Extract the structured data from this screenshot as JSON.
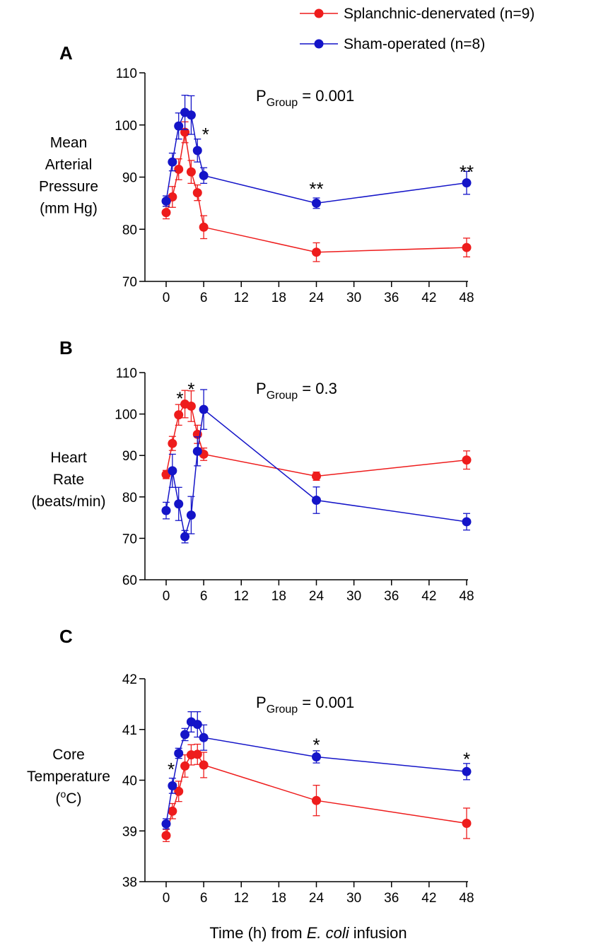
{
  "colors": {
    "splanchnic": "#ee1c1c",
    "sham": "#1414c8",
    "axis": "#000000"
  },
  "legend": [
    {
      "label": "Splanchnic-denervated (n=9)",
      "color": "#ee1c1c"
    },
    {
      "label": "Sham-operated (n=8)",
      "color": "#1414c8"
    }
  ],
  "x_axis": {
    "label_prefix": "Time (h) from ",
    "label_italic": "E. coli",
    "label_suffix": " infusion",
    "ticks": [
      0,
      6,
      12,
      18,
      24,
      30,
      36,
      42,
      48
    ],
    "range": [
      -1,
      48.5
    ]
  },
  "chart_data": [
    {
      "type": "line",
      "panel": "A",
      "ylabel_lines": [
        "Mean",
        "Arterial",
        "Pressure",
        "(mm Hg)"
      ],
      "ylim": [
        70,
        110
      ],
      "yticks": [
        70,
        80,
        90,
        100,
        110
      ],
      "p_group": {
        "P": "P",
        "sub": "Group",
        "rest": " = 0.001"
      },
      "series": [
        {
          "name": "Splanchnic-denervated (n=9)",
          "color": "#ee1c1c",
          "x": [
            0,
            1,
            2,
            3,
            4,
            5,
            6,
            24,
            48
          ],
          "y": [
            83.2,
            86.2,
            91.5,
            98.6,
            91.0,
            87.0,
            80.4,
            75.6,
            76.5
          ],
          "err": [
            1.2,
            2.0,
            2.0,
            2.0,
            2.2,
            1.5,
            2.2,
            1.8,
            1.8
          ]
        },
        {
          "name": "Sham-operated (n=8)",
          "color": "#1414c8",
          "x": [
            0,
            1,
            2,
            3,
            4,
            5,
            6,
            24,
            48
          ],
          "y": [
            85.4,
            92.9,
            99.8,
            102.4,
            101.9,
            95.1,
            90.3,
            85.0,
            88.9
          ],
          "err": [
            1.0,
            1.7,
            2.5,
            3.3,
            3.7,
            2.2,
            1.5,
            1.0,
            2.2
          ]
        }
      ],
      "annotations": [
        {
          "x": 6.3,
          "y": 98.6,
          "text": "*"
        },
        {
          "x": 24,
          "y": 88.2,
          "text": "**"
        },
        {
          "x": 48,
          "y": 91.4,
          "text": "**"
        }
      ]
    },
    {
      "type": "line",
      "panel": "B",
      "ylabel_lines": [
        "Heart",
        "Rate",
        "(beats/min)"
      ],
      "ylim": [
        60,
        110
      ],
      "yticks": [
        60,
        70,
        80,
        90,
        100,
        110
      ],
      "p_group": {
        "P": "P",
        "sub": "Group",
        "rest": " = 0.3"
      },
      "series": [
        {
          "name": "Splanchnic-denervated (n=9)",
          "color": "#ee1c1c",
          "x": [
            0,
            1,
            2,
            3,
            4,
            5,
            6,
            24,
            48
          ],
          "y": [
            85.4,
            92.9,
            99.8,
            102.4,
            101.9,
            95.1,
            90.3,
            85.0,
            88.9
          ],
          "err": [
            1.0,
            1.7,
            2.5,
            3.3,
            3.7,
            2.2,
            1.5,
            1.0,
            2.2
          ]
        },
        {
          "name": "Sham-operated (n=8)",
          "color": "#1414c8",
          "x": [
            0,
            1,
            2,
            3,
            4,
            5,
            6,
            24,
            48
          ],
          "y": [
            76.7,
            86.3,
            78.3,
            70.4,
            75.6,
            91.0,
            101.1,
            79.2,
            74.0
          ],
          "err": [
            2.0,
            4.0,
            4.0,
            1.5,
            4.5,
            3.5,
            4.8,
            3.2,
            2.0
          ]
        }
      ],
      "annotations": [
        {
          "x": 2.2,
          "y": 104.3,
          "text": "*"
        },
        {
          "x": 4.0,
          "y": 106.5,
          "text": "*"
        }
      ]
    },
    {
      "type": "line",
      "panel": "C",
      "ylabel_lines": [
        "Core",
        "Temperature"
      ],
      "ylabel_unit": {
        "open": "(",
        "sup": "o",
        "close": "C)"
      },
      "ylim": [
        38,
        42
      ],
      "yticks": [
        38,
        39,
        40,
        41,
        42
      ],
      "p_group": {
        "P": "P",
        "sub": "Group",
        "rest": " = 0.001"
      },
      "series": [
        {
          "name": "Splanchnic-denervated (n=9)",
          "color": "#ee1c1c",
          "x": [
            0,
            1,
            2,
            3,
            4,
            5,
            6,
            24,
            48
          ],
          "y": [
            38.91,
            39.39,
            39.78,
            40.28,
            40.5,
            40.51,
            40.3,
            39.6,
            39.15
          ],
          "err": [
            0.12,
            0.15,
            0.2,
            0.22,
            0.2,
            0.2,
            0.25,
            0.3,
            0.3
          ]
        },
        {
          "name": "Sham-operated (n=8)",
          "color": "#1414c8",
          "x": [
            0,
            1,
            2,
            3,
            4,
            5,
            6,
            24,
            48
          ],
          "y": [
            39.14,
            39.89,
            40.53,
            40.9,
            41.15,
            41.1,
            40.84,
            40.46,
            40.17
          ],
          "err": [
            0.1,
            0.15,
            0.1,
            0.12,
            0.2,
            0.25,
            0.25,
            0.12,
            0.16
          ]
        }
      ],
      "annotations": [
        {
          "x": 0.8,
          "y": 40.26,
          "text": "*"
        },
        {
          "x": 24,
          "y": 40.74,
          "text": "*"
        },
        {
          "x": 48,
          "y": 40.46,
          "text": "*"
        }
      ]
    }
  ]
}
